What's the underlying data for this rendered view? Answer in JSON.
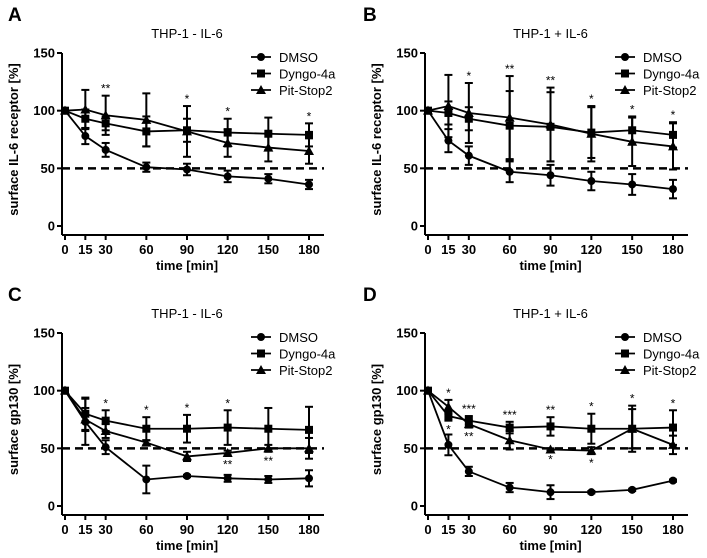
{
  "chart_data": [
    {
      "type": "line",
      "panel_label": "A",
      "title": "THP-1 - IL-6",
      "xlabel": "time [min]",
      "ylabel": "surface IL-6 receptor [%]",
      "x": [
        0,
        15,
        30,
        60,
        90,
        120,
        150,
        180
      ],
      "xticks": [
        "0",
        "15",
        "30",
        "60",
        "90",
        "120",
        "150",
        "180"
      ],
      "ylim": [
        0,
        150
      ],
      "yticks": [
        "0",
        "50",
        "100",
        "150"
      ],
      "reference_line": 50,
      "legend": "top-right",
      "series": [
        {
          "name": "DMSO",
          "marker": "circle",
          "values": [
            100,
            78,
            66,
            51,
            49,
            43,
            41,
            36
          ],
          "error": [
            0,
            7,
            6,
            4,
            5,
            5,
            4,
            4
          ]
        },
        {
          "name": "Dyngo-4a",
          "marker": "square",
          "values": [
            100,
            93,
            89,
            82,
            83,
            81,
            80,
            79
          ],
          "error": [
            0,
            8,
            6,
            13,
            10,
            12,
            14,
            10
          ]
        },
        {
          "name": "Pit-Stop2",
          "marker": "triangle",
          "values": [
            100,
            101,
            96,
            92,
            82,
            72,
            68,
            65
          ],
          "error": [
            0,
            17,
            17,
            23,
            22,
            12,
            12,
            11
          ]
        }
      ],
      "annotations": [
        {
          "x": 30,
          "text": "**",
          "pos": "above"
        },
        {
          "x": 90,
          "text": "*",
          "pos": "above"
        },
        {
          "x": 120,
          "text": "*",
          "pos": "above"
        },
        {
          "x": 180,
          "text": "*",
          "pos": "above"
        }
      ]
    },
    {
      "type": "line",
      "panel_label": "B",
      "title": "THP-1 + IL-6",
      "xlabel": "time [min]",
      "ylabel": "surface IL-6 receptor [%]",
      "x": [
        0,
        15,
        30,
        60,
        90,
        120,
        150,
        180
      ],
      "xticks": [
        "0",
        "15",
        "30",
        "60",
        "90",
        "120",
        "150",
        "180"
      ],
      "ylim": [
        0,
        150
      ],
      "yticks": [
        "0",
        "50",
        "100",
        "150"
      ],
      "reference_line": 50,
      "legend": "top-right",
      "series": [
        {
          "name": "DMSO",
          "marker": "circle",
          "values": [
            100,
            74,
            61,
            47,
            44,
            39,
            36,
            32
          ],
          "error": [
            0,
            10,
            8,
            9,
            9,
            8,
            9,
            8
          ]
        },
        {
          "name": "Dyngo-4a",
          "marker": "square",
          "values": [
            100,
            98,
            93,
            87,
            86,
            81,
            83,
            79
          ],
          "error": [
            0,
            10,
            10,
            30,
            30,
            22,
            12,
            11
          ]
        },
        {
          "name": "Pit-Stop2",
          "marker": "triangle",
          "values": [
            100,
            104,
            98,
            94,
            88,
            80,
            73,
            69
          ],
          "error": [
            0,
            27,
            26,
            36,
            32,
            24,
            21,
            20
          ]
        }
      ],
      "annotations": [
        {
          "x": 30,
          "text": "*",
          "pos": "above"
        },
        {
          "x": 60,
          "text": "**",
          "pos": "above"
        },
        {
          "x": 90,
          "text": "**",
          "pos": "above"
        },
        {
          "x": 120,
          "text": "*",
          "pos": "above"
        },
        {
          "x": 150,
          "text": "*",
          "pos": "above"
        },
        {
          "x": 180,
          "text": "*",
          "pos": "above"
        }
      ]
    },
    {
      "type": "line",
      "panel_label": "C",
      "title": "THP-1 - IL-6",
      "xlabel": "time [min]",
      "ylabel": "surface gp130 [%]",
      "x": [
        0,
        15,
        30,
        60,
        90,
        120,
        150,
        180
      ],
      "xticks": [
        "0",
        "15",
        "30",
        "60",
        "90",
        "120",
        "150",
        "180"
      ],
      "ylim": [
        0,
        150
      ],
      "yticks": [
        "0",
        "50",
        "100",
        "150"
      ],
      "reference_line": 50,
      "legend": "top-right",
      "series": [
        {
          "name": "DMSO",
          "marker": "circle",
          "values": [
            100,
            73,
            51,
            23,
            26,
            24,
            23,
            24
          ],
          "error": [
            0,
            20,
            6,
            12,
            1,
            3,
            3,
            7
          ]
        },
        {
          "name": "Dyngo-4a",
          "marker": "square",
          "values": [
            100,
            80,
            74,
            67,
            67,
            68,
            67,
            66
          ],
          "error": [
            0,
            14,
            9,
            10,
            12,
            15,
            18,
            20
          ]
        },
        {
          "name": "Pit-Stop2",
          "marker": "triangle",
          "values": [
            100,
            75,
            65,
            55,
            43,
            46,
            50,
            50
          ],
          "error": [
            0,
            10,
            6,
            2,
            4,
            2,
            3,
            9
          ]
        }
      ],
      "annotations": [
        {
          "x": 30,
          "text": "*",
          "pos": "above"
        },
        {
          "x": 60,
          "text": "*",
          "pos": "above"
        },
        {
          "x": 90,
          "text": "*",
          "pos": "above"
        },
        {
          "x": 120,
          "text": "*",
          "pos": "above"
        },
        {
          "x": 120,
          "text": "**",
          "pos": "below"
        },
        {
          "x": 150,
          "text": "**",
          "pos": "below"
        }
      ]
    },
    {
      "type": "line",
      "panel_label": "D",
      "title": "THP-1 + IL-6",
      "xlabel": "time [min]",
      "ylabel": "surface gp130 [%]",
      "x": [
        0,
        15,
        30,
        60,
        90,
        120,
        150,
        180
      ],
      "xticks": [
        "0",
        "15",
        "30",
        "60",
        "90",
        "120",
        "150",
        "180"
      ],
      "ylim": [
        0,
        150
      ],
      "yticks": [
        "0",
        "50",
        "100",
        "150"
      ],
      "reference_line": 50,
      "legend": "top-right",
      "series": [
        {
          "name": "DMSO",
          "marker": "circle",
          "values": [
            100,
            53,
            30,
            16,
            12,
            12,
            14,
            22
          ],
          "error": [
            0,
            9,
            4,
            4,
            6,
            1,
            1,
            1
          ]
        },
        {
          "name": "Dyngo-4a",
          "marker": "square",
          "values": [
            100,
            78,
            74,
            68,
            69,
            67,
            67,
            68
          ],
          "error": [
            0,
            4,
            4,
            5,
            8,
            13,
            20,
            15
          ]
        },
        {
          "name": "Pit-Stop2",
          "marker": "triangle",
          "values": [
            100,
            86,
            71,
            57,
            49,
            48,
            67,
            53
          ],
          "error": [
            0,
            6,
            3,
            8,
            1,
            3,
            17,
            8
          ]
        }
      ],
      "annotations": [
        {
          "x": 15,
          "text": "*",
          "pos": "above"
        },
        {
          "x": 30,
          "text": "***",
          "pos": "above"
        },
        {
          "x": 60,
          "text": "***",
          "pos": "above"
        },
        {
          "x": 90,
          "text": "**",
          "pos": "above"
        },
        {
          "x": 120,
          "text": "*",
          "pos": "above"
        },
        {
          "x": 150,
          "text": "*",
          "pos": "above"
        },
        {
          "x": 180,
          "text": "*",
          "pos": "above"
        },
        {
          "x": 15,
          "text": "*",
          "pos": "below"
        },
        {
          "x": 30,
          "text": "**",
          "pos": "below"
        },
        {
          "x": 90,
          "text": "*",
          "pos": "below"
        },
        {
          "x": 120,
          "text": "*",
          "pos": "below"
        }
      ]
    }
  ]
}
